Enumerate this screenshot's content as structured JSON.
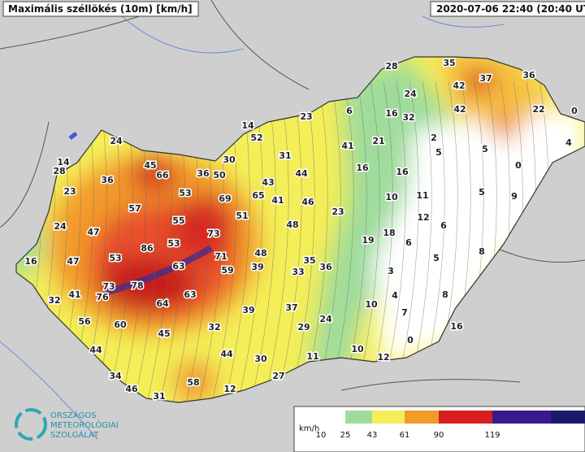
{
  "header": {
    "title": "Maximális széllökés (10m) [km/h]",
    "timestamp": "2020-07-06 22:40 (20:40 UT"
  },
  "stations": [
    14,
    28,
    24,
    45,
    66,
    36,
    36,
    50,
    30,
    14,
    52,
    23,
    6,
    28,
    35,
    37,
    36,
    42,
    24,
    16,
    32,
    42,
    22,
    0,
    2,
    4,
    21,
    41,
    31,
    44,
    43,
    65,
    41,
    46,
    23,
    53,
    69,
    57,
    24,
    55,
    51,
    48,
    23,
    16,
    16,
    5,
    5,
    0,
    10,
    11,
    5,
    9,
    12,
    6,
    47,
    86,
    53,
    73,
    19,
    18,
    6,
    8,
    16,
    47,
    53,
    63,
    71,
    48,
    35,
    36,
    39,
    33,
    59,
    3,
    5,
    73,
    78,
    76,
    41,
    32,
    63,
    64,
    4,
    8,
    10,
    7,
    39,
    37,
    56,
    60,
    24,
    0,
    16,
    45,
    32,
    29,
    44,
    44,
    30,
    11,
    10,
    12,
    34,
    46,
    58,
    27,
    12,
    31
  ],
  "legend": {
    "unit": "km/h",
    "labels": [
      "10",
      "25",
      "43",
      "61",
      "90",
      "119"
    ]
  },
  "logo": {
    "lines": [
      "ORSZÁGOS",
      "METEOROLÓGIAI",
      "SZOLGÁLAT"
    ]
  }
}
